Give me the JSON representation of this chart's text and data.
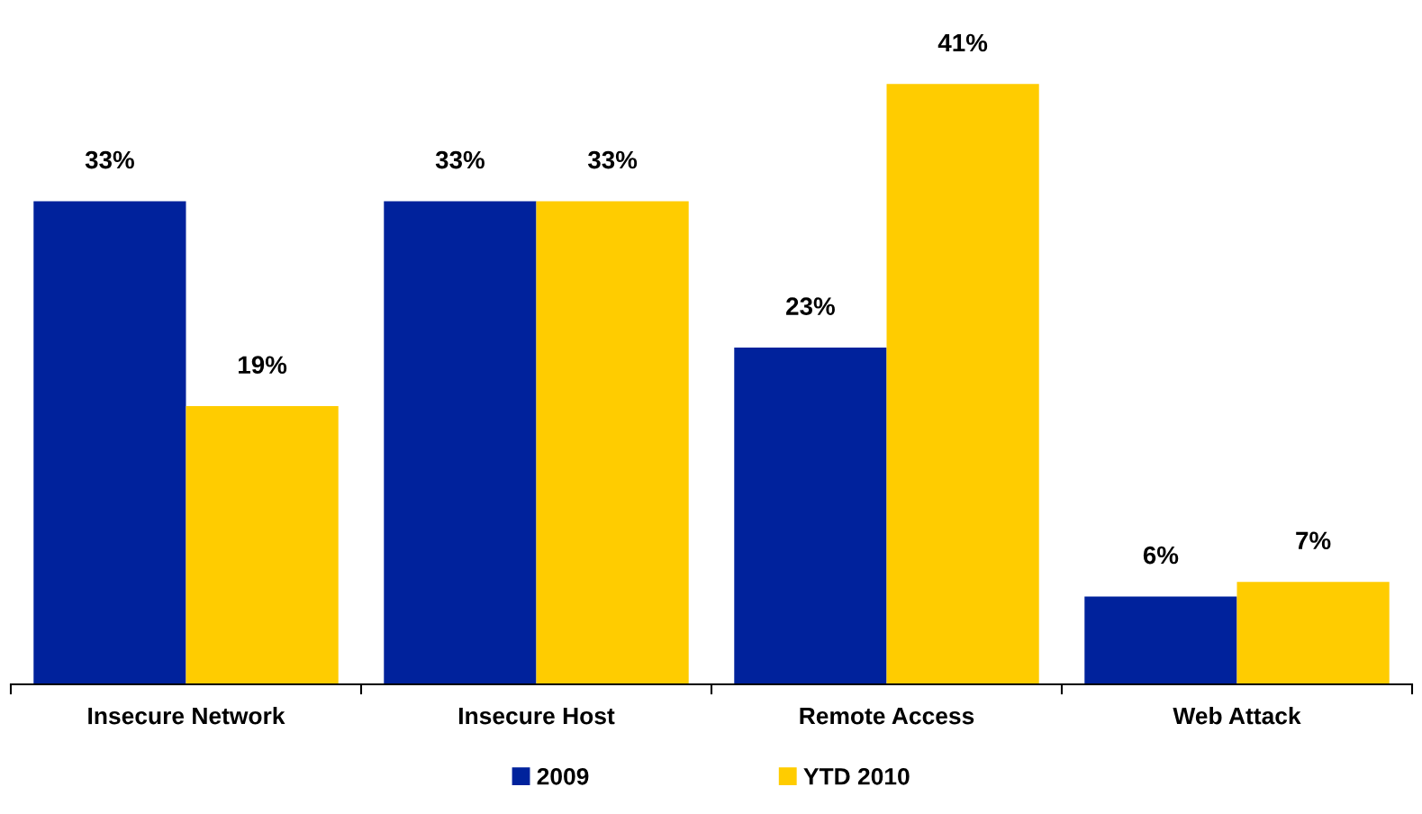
{
  "chart_data": {
    "type": "bar",
    "categories": [
      "Insecure Network",
      "Insecure Host",
      "Remote Access",
      "Web Attack"
    ],
    "series": [
      {
        "name": "2009",
        "color": "#00229c",
        "values": [
          33,
          33,
          23,
          6
        ],
        "value_labels": [
          "33%",
          "33%",
          "23%",
          "6%"
        ]
      },
      {
        "name": "YTD 2010",
        "color": "#ffcc00",
        "values": [
          19,
          33,
          41,
          7
        ],
        "value_labels": [
          "19%",
          "33%",
          "41%",
          "7%"
        ]
      }
    ],
    "grid": false,
    "legend": "bottom"
  }
}
